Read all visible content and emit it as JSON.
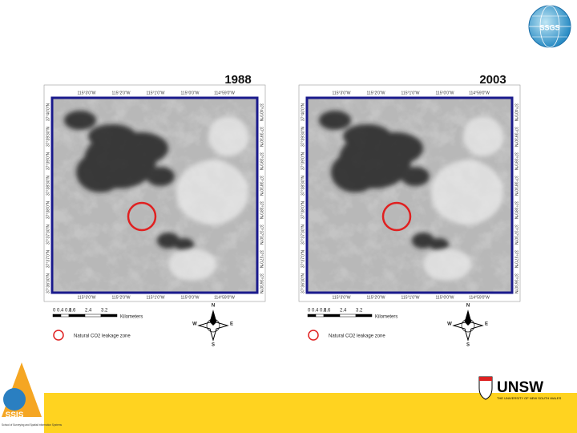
{
  "panels": [
    {
      "year": "1988"
    },
    {
      "year": "2003"
    }
  ],
  "lon_labels": [
    "115°3'0\"W",
    "115°2'0\"W",
    "115°1'0\"W",
    "115°0'0\"W",
    "114°59'0\"W"
  ],
  "lat_labels": [
    "37°40'0\"N",
    "37°39'30\"N",
    "37°39'0\"N",
    "37°38'30\"N",
    "37°38'0\"N",
    "37°37'30\"N",
    "37°37'0\"N",
    "37°36'30\"N"
  ],
  "scale": {
    "ticks": [
      "0 0.4 0.8",
      "1.6",
      "2.4",
      "3.2"
    ],
    "unit": "Kilometers"
  },
  "legend": "Natural CO2 leakage zone",
  "compass": {
    "n": "N",
    "s": "S",
    "e": "E",
    "w": "W"
  },
  "logos": {
    "left": "SSIS",
    "left_sub": "School of Surveying and Spatial Information Systems",
    "right": "UNSW",
    "right_sub": "THE UNIVERSITY OF NEW SOUTH WALES",
    "top": "SSGS"
  }
}
